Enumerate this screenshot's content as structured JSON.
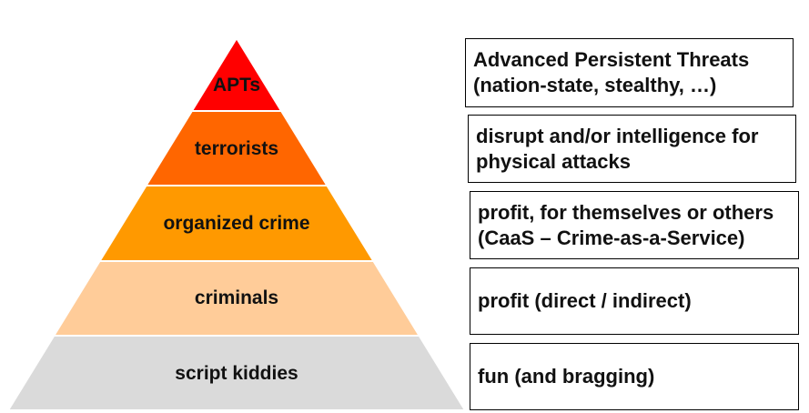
{
  "diagram": {
    "tiers": [
      {
        "label": "APTs",
        "color": "#ff0000"
      },
      {
        "label": "terrorists",
        "color": "#ff6600"
      },
      {
        "label": "organized crime",
        "color": "#ff9900"
      },
      {
        "label": "criminals",
        "color": "#ffcc99"
      },
      {
        "label": "script kiddies",
        "color": "#dadada"
      }
    ],
    "descriptions": [
      "Advanced Persistent Threats\n(nation-state, stealthy, …)",
      "disrupt and/or intelligence for\nphysical attacks",
      "profit, for themselves or others\n(CaaS – Crime-as-a-Service)",
      "profit (direct / indirect)",
      "fun (and bragging)"
    ]
  }
}
